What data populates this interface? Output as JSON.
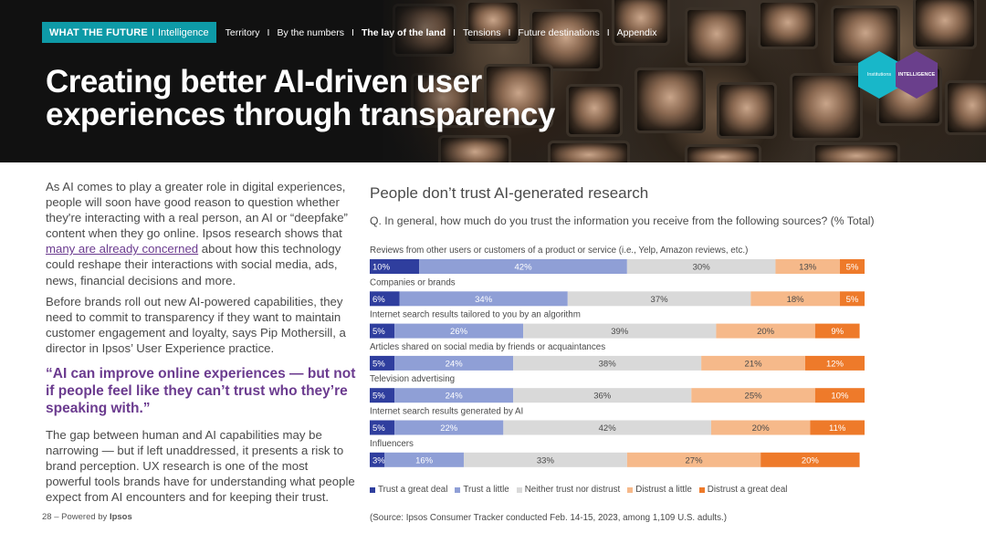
{
  "header": {
    "brand_strong": "WHAT THE FUTURE",
    "brand_sep": "I",
    "brand_sub": "Intelligence",
    "nav_items": [
      {
        "label": "Territory",
        "active": false
      },
      {
        "label": "By the numbers",
        "active": false
      },
      {
        "label": "The lay of the land",
        "active": true
      },
      {
        "label": "Tensions",
        "active": false
      },
      {
        "label": "Future destinations",
        "active": false
      },
      {
        "label": "Appendix",
        "active": false
      }
    ],
    "nav_separator": "I",
    "title_line1": "Creating better AI-driven user",
    "title_line2": "experiences through transparency",
    "badge_left": "Institutions",
    "badge_right": "INTELLIGENCE"
  },
  "body": {
    "p1_before_link": "As AI comes to play a greater role in digital experiences, people will soon have good reason to question whether they're interacting with a real person, an AI or “deepfake” content when they go online. Ipsos research shows that ",
    "p1_link": "many are already concerned",
    "p1_after_link": " about how this technology could reshape their interactions with social media, ads, news, financial decisions and more.",
    "p2": "Before brands roll out new AI-powered capabilities, they need to commit to transparency if they want to maintain customer engagement and loyalty, says Pip Mothersill, a director in Ipsos’ User Experience practice.",
    "quote": "“AI can improve online experiences — but not if people feel like they can’t trust who they’re speaking with.”",
    "p3": "The gap between human and AI capabilities may be narrowing — but if left unaddressed, it presents a risk to brand perception. UX research is one of the most powerful tools brands have for understanding what people expect from AI encounters and for keeping their trust."
  },
  "footer": {
    "page": "28 –",
    "powered": "Powered by",
    "brand": "Ipsos"
  },
  "chart_title": "People don’t trust AI-generated research",
  "chart_question": "Q. In general, how much do you trust the information you receive from the following sources? (% Total)",
  "source": "(Source: Ipsos Consumer Tracker conducted Feb. 14-15, 2023, among 1,109 U.S. adults.)",
  "colors": {
    "header_brand": "#0e9aa7",
    "quote": "#6b3b8f",
    "badge_teal": "#18b7c9",
    "badge_purple": "#6a3f8c"
  },
  "chart_data": {
    "type": "bar",
    "orientation": "horizontal",
    "stacked": true,
    "unit": "%",
    "categories": [
      "Reviews from other users or customers of a product or service (i.e., Yelp, Amazon reviews, etc.)",
      "Companies or brands",
      "Internet search results tailored to you by an algorithm",
      "Articles shared on social media by friends or acquaintances",
      "Television advertising",
      "Internet search results generated by AI",
      "Influencers"
    ],
    "series": [
      {
        "name": "Trust a great deal",
        "color": "#2f3e9e",
        "values": [
          10,
          6,
          5,
          5,
          5,
          5,
          3
        ]
      },
      {
        "name": "Trust a little",
        "color": "#8f9fd6",
        "values": [
          42,
          34,
          26,
          24,
          24,
          22,
          16
        ]
      },
      {
        "name": "Neither trust nor distrust",
        "color": "#d9d9d9",
        "values": [
          30,
          37,
          39,
          38,
          36,
          42,
          33
        ]
      },
      {
        "name": "Distrust a little",
        "color": "#f6b98a",
        "values": [
          13,
          18,
          20,
          21,
          25,
          20,
          27
        ]
      },
      {
        "name": "Distrust a great deal",
        "color": "#ee7a2a",
        "values": [
          5,
          5,
          9,
          12,
          10,
          11,
          20
        ]
      }
    ],
    "xlim": [
      0,
      100
    ],
    "legend": "bottom"
  }
}
